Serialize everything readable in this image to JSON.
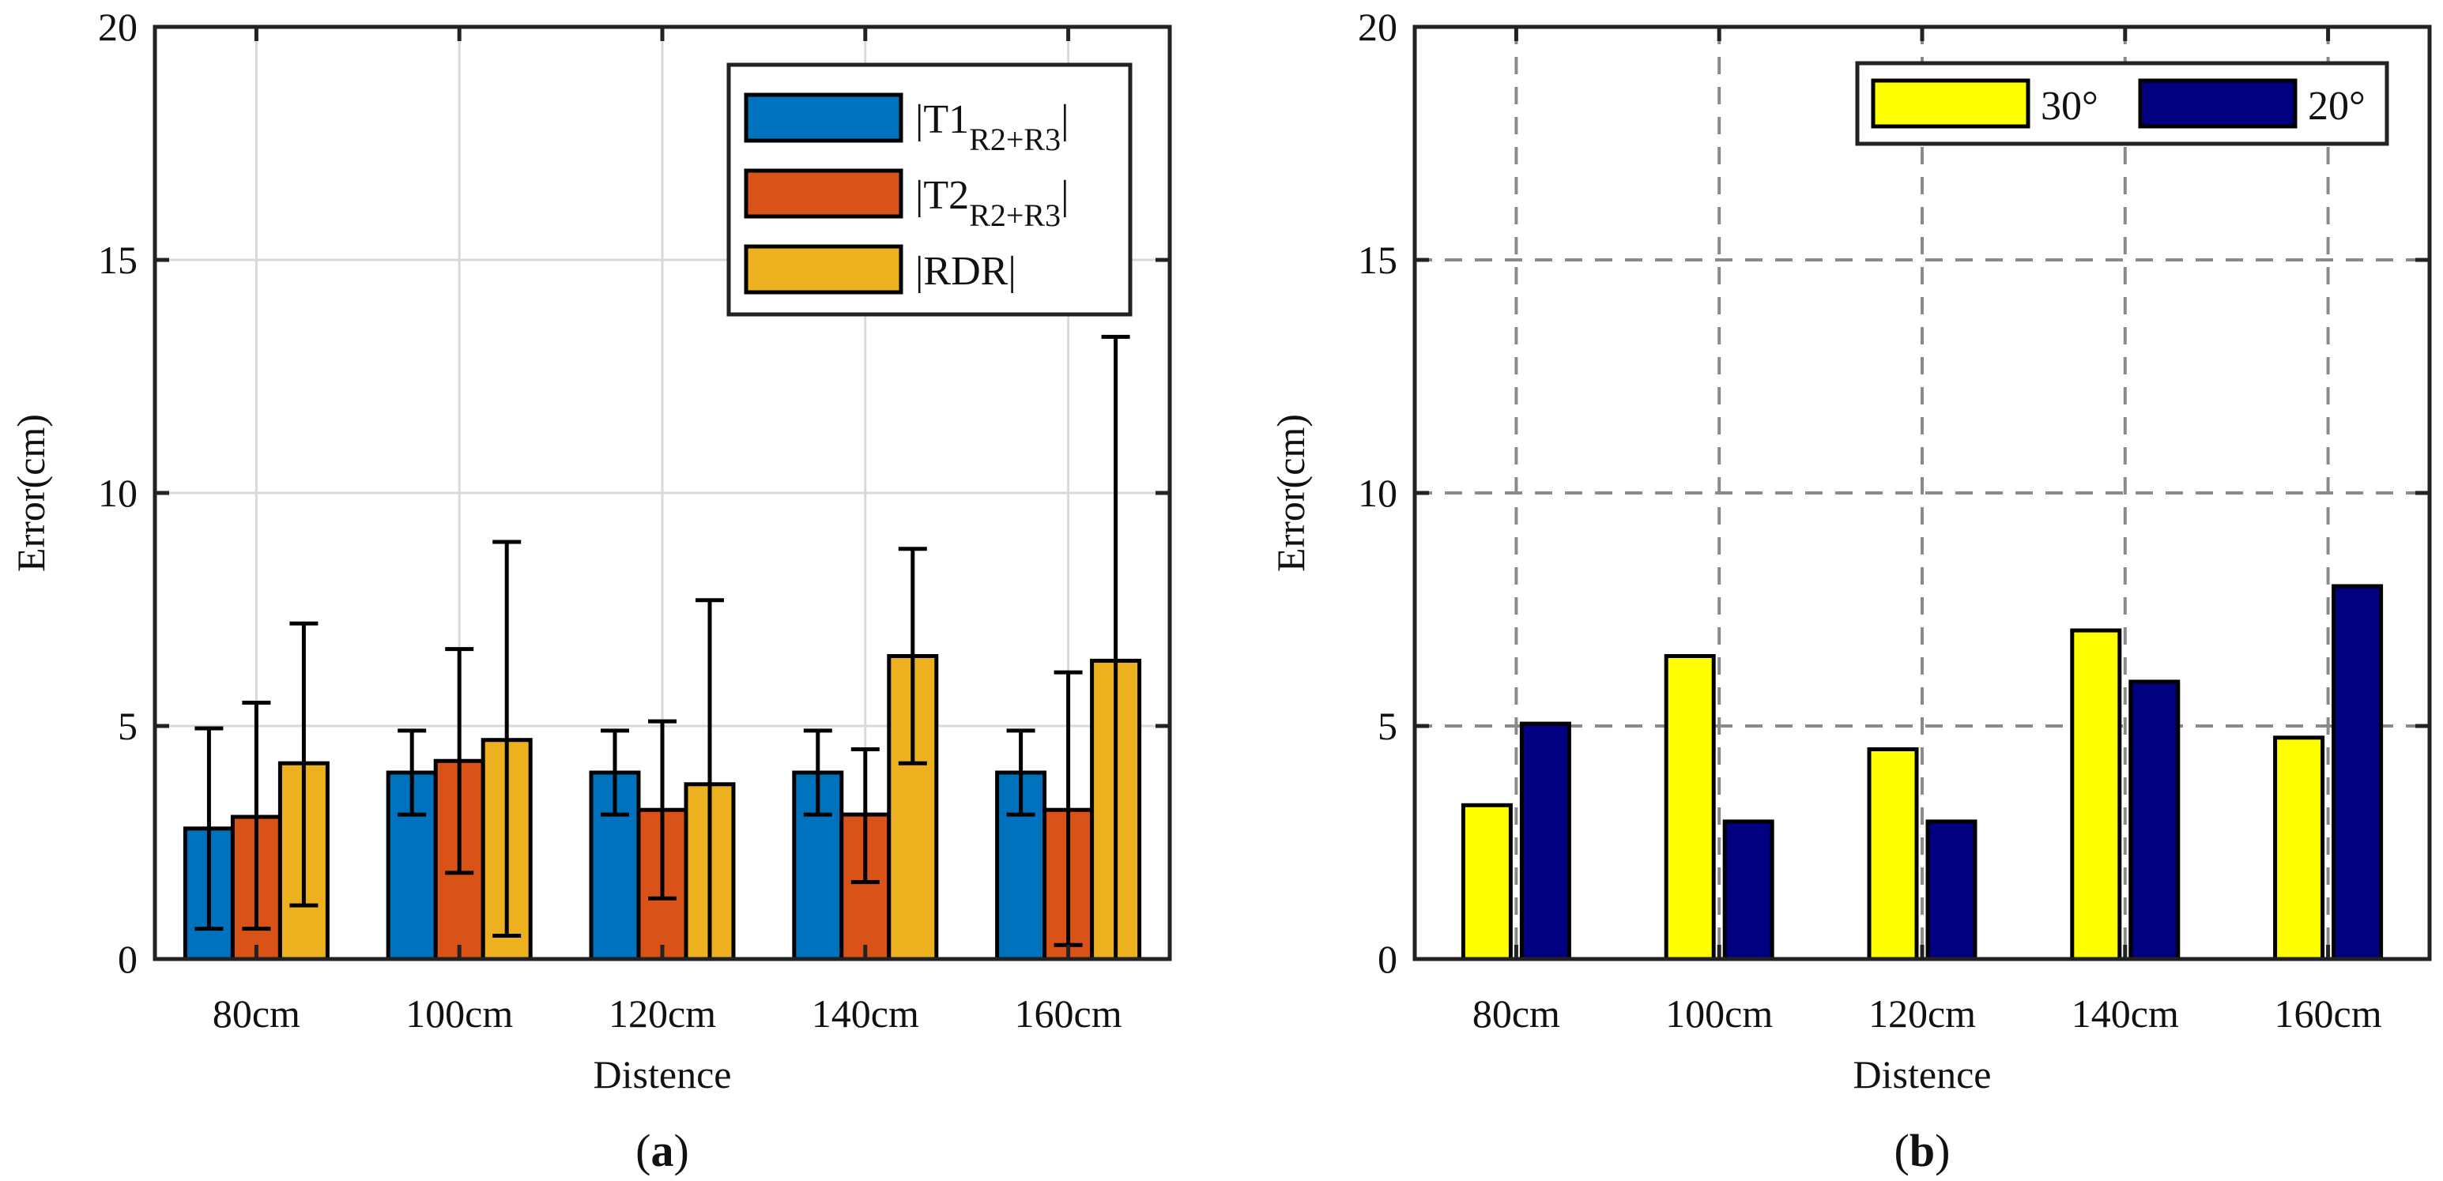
{
  "chart_data": [
    {
      "type": "bar",
      "panel_caption": "(a)",
      "caption_parts": {
        "open": "(",
        "letter": "a",
        "close": ")"
      },
      "categories": [
        "80cm",
        "100cm",
        "120cm",
        "140cm",
        "160cm"
      ],
      "xlabel": "Distence",
      "ylabel": "Error(cm)",
      "ylim": [
        0,
        20
      ],
      "yticks": [
        "0",
        "5",
        "10",
        "15",
        "20"
      ],
      "grid": "solid light",
      "legend_position": "top-right",
      "series": [
        {
          "name": "|T1R2+R3|",
          "label_parts": {
            "open": "|T1",
            "sub": "R2+R3",
            "close": "|"
          },
          "color": "#0072BD",
          "values": [
            2.8,
            4.0,
            4.0,
            4.0,
            4.0
          ],
          "error_low": [
            0.65,
            3.1,
            3.1,
            3.1,
            3.1
          ],
          "error_high": [
            4.95,
            4.9,
            4.9,
            4.9,
            4.9
          ]
        },
        {
          "name": "|T2R2+R3|",
          "label_parts": {
            "open": "|T2",
            "sub": "R2+R3",
            "close": "|"
          },
          "color": "#D95319",
          "values": [
            3.05,
            4.25,
            3.2,
            3.1,
            3.2
          ],
          "error_low": [
            0.65,
            1.85,
            1.3,
            1.65,
            0.3
          ],
          "error_high": [
            5.5,
            6.65,
            5.1,
            4.5,
            6.15
          ]
        },
        {
          "name": "|RDR|",
          "label_parts": {
            "open": "|RDR|",
            "sub": "",
            "close": ""
          },
          "color": "#EDB120",
          "values": [
            4.2,
            4.7,
            3.75,
            6.5,
            6.4
          ],
          "error_low": [
            1.15,
            0.5,
            0.0,
            4.2,
            0.0
          ],
          "error_high": [
            7.2,
            8.95,
            7.7,
            8.8,
            13.35
          ]
        }
      ]
    },
    {
      "type": "bar",
      "panel_caption": "(b)",
      "caption_parts": {
        "open": "(",
        "letter": "b",
        "close": ")"
      },
      "categories": [
        "80cm",
        "100cm",
        "120cm",
        "140cm",
        "160cm"
      ],
      "xlabel": "Distence",
      "ylabel": "Error(cm)",
      "ylim": [
        0,
        20
      ],
      "yticks": [
        "0",
        "5",
        "10",
        "15",
        "20"
      ],
      "grid": "dashed",
      "legend_position": "top-right",
      "legend_layout": "horizontal",
      "series": [
        {
          "name": "30°",
          "color": "#FFFF00",
          "values": [
            3.3,
            6.5,
            4.5,
            7.05,
            4.75
          ]
        },
        {
          "name": "20°",
          "color": "#000080",
          "values": [
            5.05,
            2.95,
            2.95,
            5.95,
            8.0
          ]
        }
      ]
    }
  ]
}
